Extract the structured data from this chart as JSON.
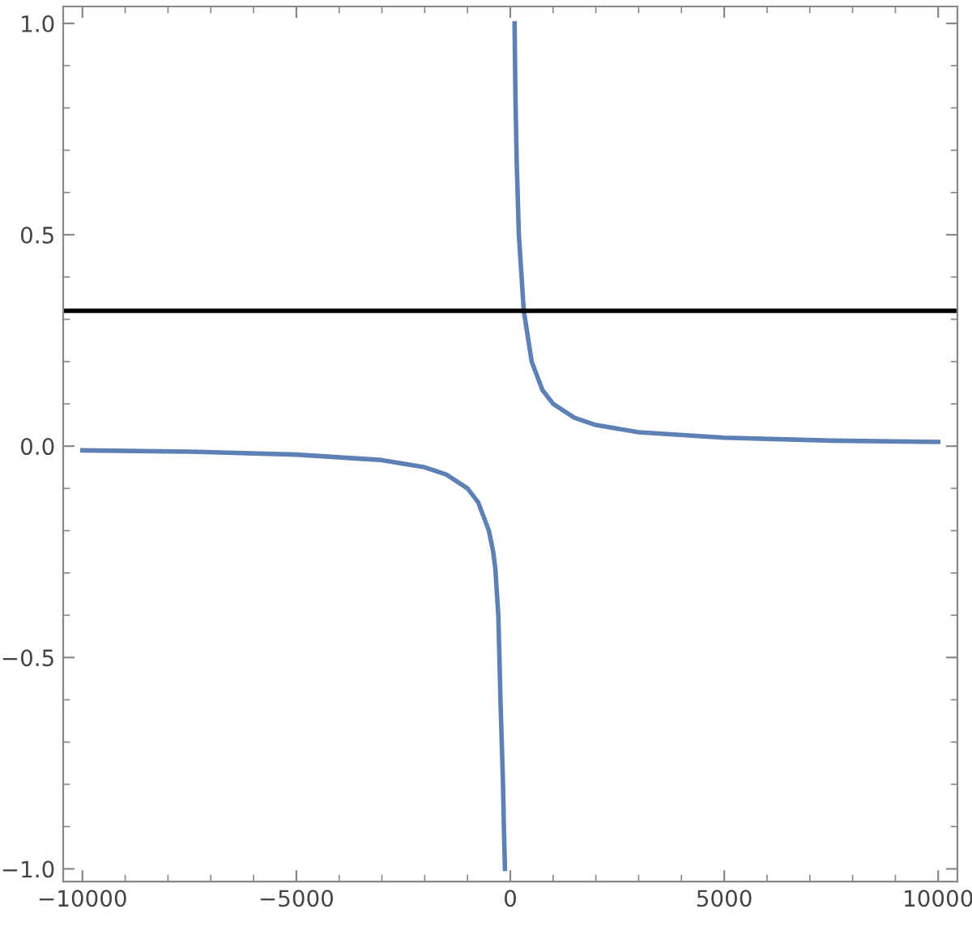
{
  "chart_data": {
    "type": "line",
    "x": [
      -10000,
      -7500,
      -5000,
      -3000,
      -2000,
      -1500,
      -1000,
      -750,
      -500,
      -400,
      -350,
      -280,
      -254,
      -230,
      -200,
      -170,
      -150,
      -125,
      0,
      100,
      120,
      150,
      200,
      315,
      500,
      750,
      1000,
      1500,
      2000,
      3000,
      5000,
      7500,
      10000
    ],
    "series": [
      {
        "color": "#5e81b5",
        "values": [
          -0.01,
          -0.013,
          -0.02,
          -0.033,
          -0.05,
          -0.067,
          -0.1,
          -0.133,
          -0.2,
          -0.25,
          -0.29,
          -0.4,
          -0.5,
          -0.6,
          -0.7,
          -0.8,
          -0.9,
          -1.0,
          null,
          1.0,
          0.83,
          0.67,
          0.5,
          0.32,
          0.2,
          0.133,
          0.1,
          0.067,
          0.05,
          0.033,
          0.02,
          0.013,
          0.01
        ]
      }
    ],
    "ref_lines": [
      {
        "axis": "y",
        "value": 0.32,
        "color": "#000000",
        "line_style": "solid"
      }
    ],
    "xlim": [
      -10450,
      10450
    ],
    "ylim": [
      -1.03,
      1.04
    ],
    "xticks": [
      {
        "value": -10000,
        "label": "−10000"
      },
      {
        "value": -5000,
        "label": "−5000"
      },
      0,
      5000,
      10000
    ],
    "yticks": [
      {
        "value": -1.0,
        "label": "−1.0"
      },
      {
        "value": -0.5,
        "label": "−0.5"
      },
      {
        "value": 0.0,
        "label": "0.0"
      },
      {
        "value": 0.5,
        "label": "0.5"
      },
      {
        "value": 1.0,
        "label": "1.0"
      }
    ],
    "grid": false,
    "marker": "none",
    "line_style": "solid"
  }
}
